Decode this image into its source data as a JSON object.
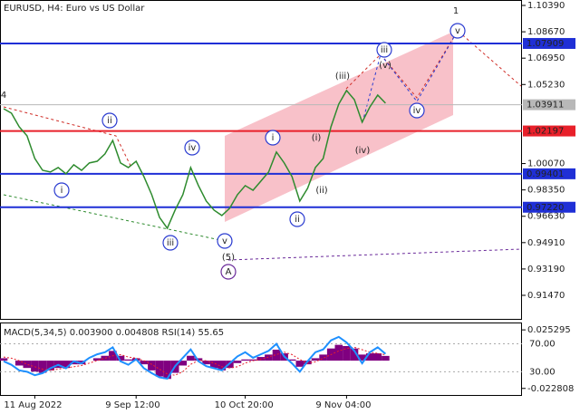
{
  "chart_data": [
    {
      "type": "line",
      "title": "EURUSD, H4:  Euro vs US Dollar",
      "categories": [
        null,
        null,
        null,
        null,
        "11 Aug 2022",
        null,
        null,
        null,
        null,
        null,
        null,
        null,
        null,
        null,
        null,
        null,
        null,
        "9 Sep 12:00",
        null,
        null,
        null,
        null,
        null,
        null,
        null,
        null,
        null,
        null,
        null,
        null,
        null,
        "10 Oct 20:00",
        null,
        null,
        null,
        null,
        null,
        null,
        null,
        null,
        null,
        null,
        null,
        null,
        "9 Nov 04:00",
        null,
        null,
        null,
        null,
        null
      ],
      "series": [
        {
          "color": "#2e8b2e",
          "values": [
            1.0365,
            1.0336,
            1.0247,
            1.0188,
            1.004,
            0.9963,
            0.9952,
            0.9981,
            0.994,
            0.9999,
            0.9963,
            1.0011,
            1.0022,
            1.007,
            1.0158,
            1.0011,
            0.9981,
            1.0022,
            0.9922,
            0.9804,
            0.9656,
            0.9585,
            0.9703,
            0.9804,
            0.9981,
            0.9863,
            0.9762,
            0.9703,
            0.9668,
            0.9715,
            0.9804,
            0.9863,
            0.9833,
            0.9892,
            0.9952,
            1.0082,
            1.0011,
            0.9922,
            0.9762,
            0.9845,
            0.9981,
            1.004,
            1.0247,
            1.0395,
            1.0484,
            1.0424,
            1.0277,
            1.0377,
            1.0454,
            1.0401
          ]
        }
      ],
      "ylim": [
        0.89933,
        1.10745
      ],
      "yticks": [
        {
          "value": 1.1039,
          "label": "1.10390"
        },
        {
          "value": 1.0867,
          "label": "1.08670"
        },
        {
          "value": 1.0695,
          "label": "1.06950"
        },
        {
          "value": 1.0523,
          "label": "1.05230"
        },
        {
          "value": 1.0007,
          "label": "1.00070"
        },
        {
          "value": 0.9835,
          "label": "0.98350"
        },
        {
          "value": 0.9663,
          "label": "0.96630"
        },
        {
          "value": 0.9491,
          "label": "0.94910"
        },
        {
          "value": 0.9319,
          "label": "0.93190"
        },
        {
          "value": 0.9147,
          "label": "0.91470"
        }
      ],
      "levels": [
        {
          "value": 1.07909,
          "label": "1.07909",
          "color": "#1f2fd6"
        },
        {
          "value": 1.03911,
          "label": "1.03911",
          "color": "#b8b8b8"
        },
        {
          "value": 1.02197,
          "label": "1.02197",
          "color": "#e8202a"
        },
        {
          "value": 0.99401,
          "label": "0.99401",
          "color": "#1f2fd6"
        },
        {
          "value": 0.9722,
          "label": "0.97220",
          "color": "#1f2fd6"
        }
      ],
      "annotations": [
        {
          "text": "4",
          "color": "#b03a2e",
          "circled": false
        },
        {
          "text": "i",
          "color": "#2a3bd0",
          "circled": true
        },
        {
          "text": "ii",
          "color": "#2a3bd0",
          "circled": true
        },
        {
          "text": "iii",
          "color": "#2a3bd0",
          "circled": true
        },
        {
          "text": "iv",
          "color": "#2a3bd0",
          "circled": true
        },
        {
          "text": "v",
          "color": "#2a3bd0",
          "circled": true
        },
        {
          "text": "(5)",
          "color": "#2e8b2e",
          "circled": false
        },
        {
          "text": "A",
          "color": "#6a2a9a",
          "circled": true
        },
        {
          "text": "i",
          "color": "#2a3bd0",
          "circled": true
        },
        {
          "text": "ii",
          "color": "#2a3bd0",
          "circled": true
        },
        {
          "text": "(i)",
          "color": "#d0302a",
          "circled": false
        },
        {
          "text": "(ii)",
          "color": "#d0302a",
          "circled": false
        },
        {
          "text": "(iii)",
          "color": "#d0302a",
          "circled": false
        },
        {
          "text": "(iv)",
          "color": "#d0302a",
          "circled": false
        },
        {
          "text": "(v)",
          "color": "#d0302a",
          "circled": false
        },
        {
          "text": "iii",
          "color": "#2a3bd0",
          "circled": true
        },
        {
          "text": "iv",
          "color": "#2a3bd0",
          "circled": true
        },
        {
          "text": "v",
          "color": "#2a3bd0",
          "circled": true
        },
        {
          "text": "1",
          "color": "#b03a2e",
          "circled": false
        }
      ]
    },
    {
      "type": "bar",
      "title": "MACD(5,34,5) 0.003900 0.004808 RSI(14) 55.65",
      "series": [
        {
          "color": "#800080",
          "values": [
            0.002,
            0.0,
            -0.004,
            -0.006,
            -0.009,
            -0.01,
            -0.008,
            -0.006,
            -0.006,
            -0.003,
            -0.003,
            0.0,
            0.002,
            0.004,
            0.008,
            0.004,
            0.001,
            0.002,
            -0.003,
            -0.008,
            -0.013,
            -0.015,
            -0.01,
            -0.004,
            0.004,
            0.002,
            -0.003,
            -0.006,
            -0.008,
            -0.006,
            -0.002,
            0.001,
            0.001,
            0.003,
            0.005,
            0.009,
            0.006,
            0.001,
            -0.005,
            -0.003,
            0.002,
            0.005,
            0.01,
            0.013,
            0.012,
            0.01,
            0.005,
            0.006,
            0.006,
            0.0039
          ]
        },
        {
          "color": "#e8202a",
          "values": [
            0.003,
            0.002,
            0.0,
            -0.003,
            -0.005,
            -0.007,
            -0.008,
            -0.007,
            -0.006,
            -0.005,
            -0.004,
            -0.002,
            0.0,
            0.002,
            0.004,
            0.005,
            0.003,
            0.002,
            0.0,
            -0.003,
            -0.007,
            -0.011,
            -0.012,
            -0.009,
            -0.003,
            0.0,
            0.0,
            -0.002,
            -0.005,
            -0.006,
            -0.005,
            -0.002,
            0.0,
            0.001,
            0.003,
            0.005,
            0.007,
            0.005,
            0.001,
            -0.002,
            -0.001,
            0.002,
            0.005,
            0.008,
            0.01,
            0.011,
            0.009,
            0.007,
            0.006,
            0.004808
          ]
        },
        {
          "color": "#1e90ff",
          "axis": "y2",
          "values": [
            45,
            40,
            32,
            30,
            25,
            28,
            35,
            40,
            35,
            45,
            42,
            50,
            55,
            58,
            65,
            45,
            40,
            48,
            35,
            28,
            22,
            20,
            38,
            50,
            62,
            45,
            38,
            35,
            32,
            42,
            52,
            58,
            50,
            55,
            60,
            70,
            52,
            42,
            30,
            45,
            58,
            62,
            75,
            80,
            72,
            60,
            42,
            58,
            65,
            55.65
          ]
        }
      ],
      "ylim": [
        -0.0282,
        0.0306
      ],
      "yticks": [
        {
          "value": 0.025295,
          "label": "0.025295"
        },
        {
          "value": -0.022808,
          "label": "-0.022808"
        }
      ],
      "y2lim": [
        -3.3,
        99.3
      ],
      "y2ticks": [
        {
          "value": 70,
          "label": "70.00"
        },
        {
          "value": 30,
          "label": "30.00"
        }
      ]
    }
  ]
}
